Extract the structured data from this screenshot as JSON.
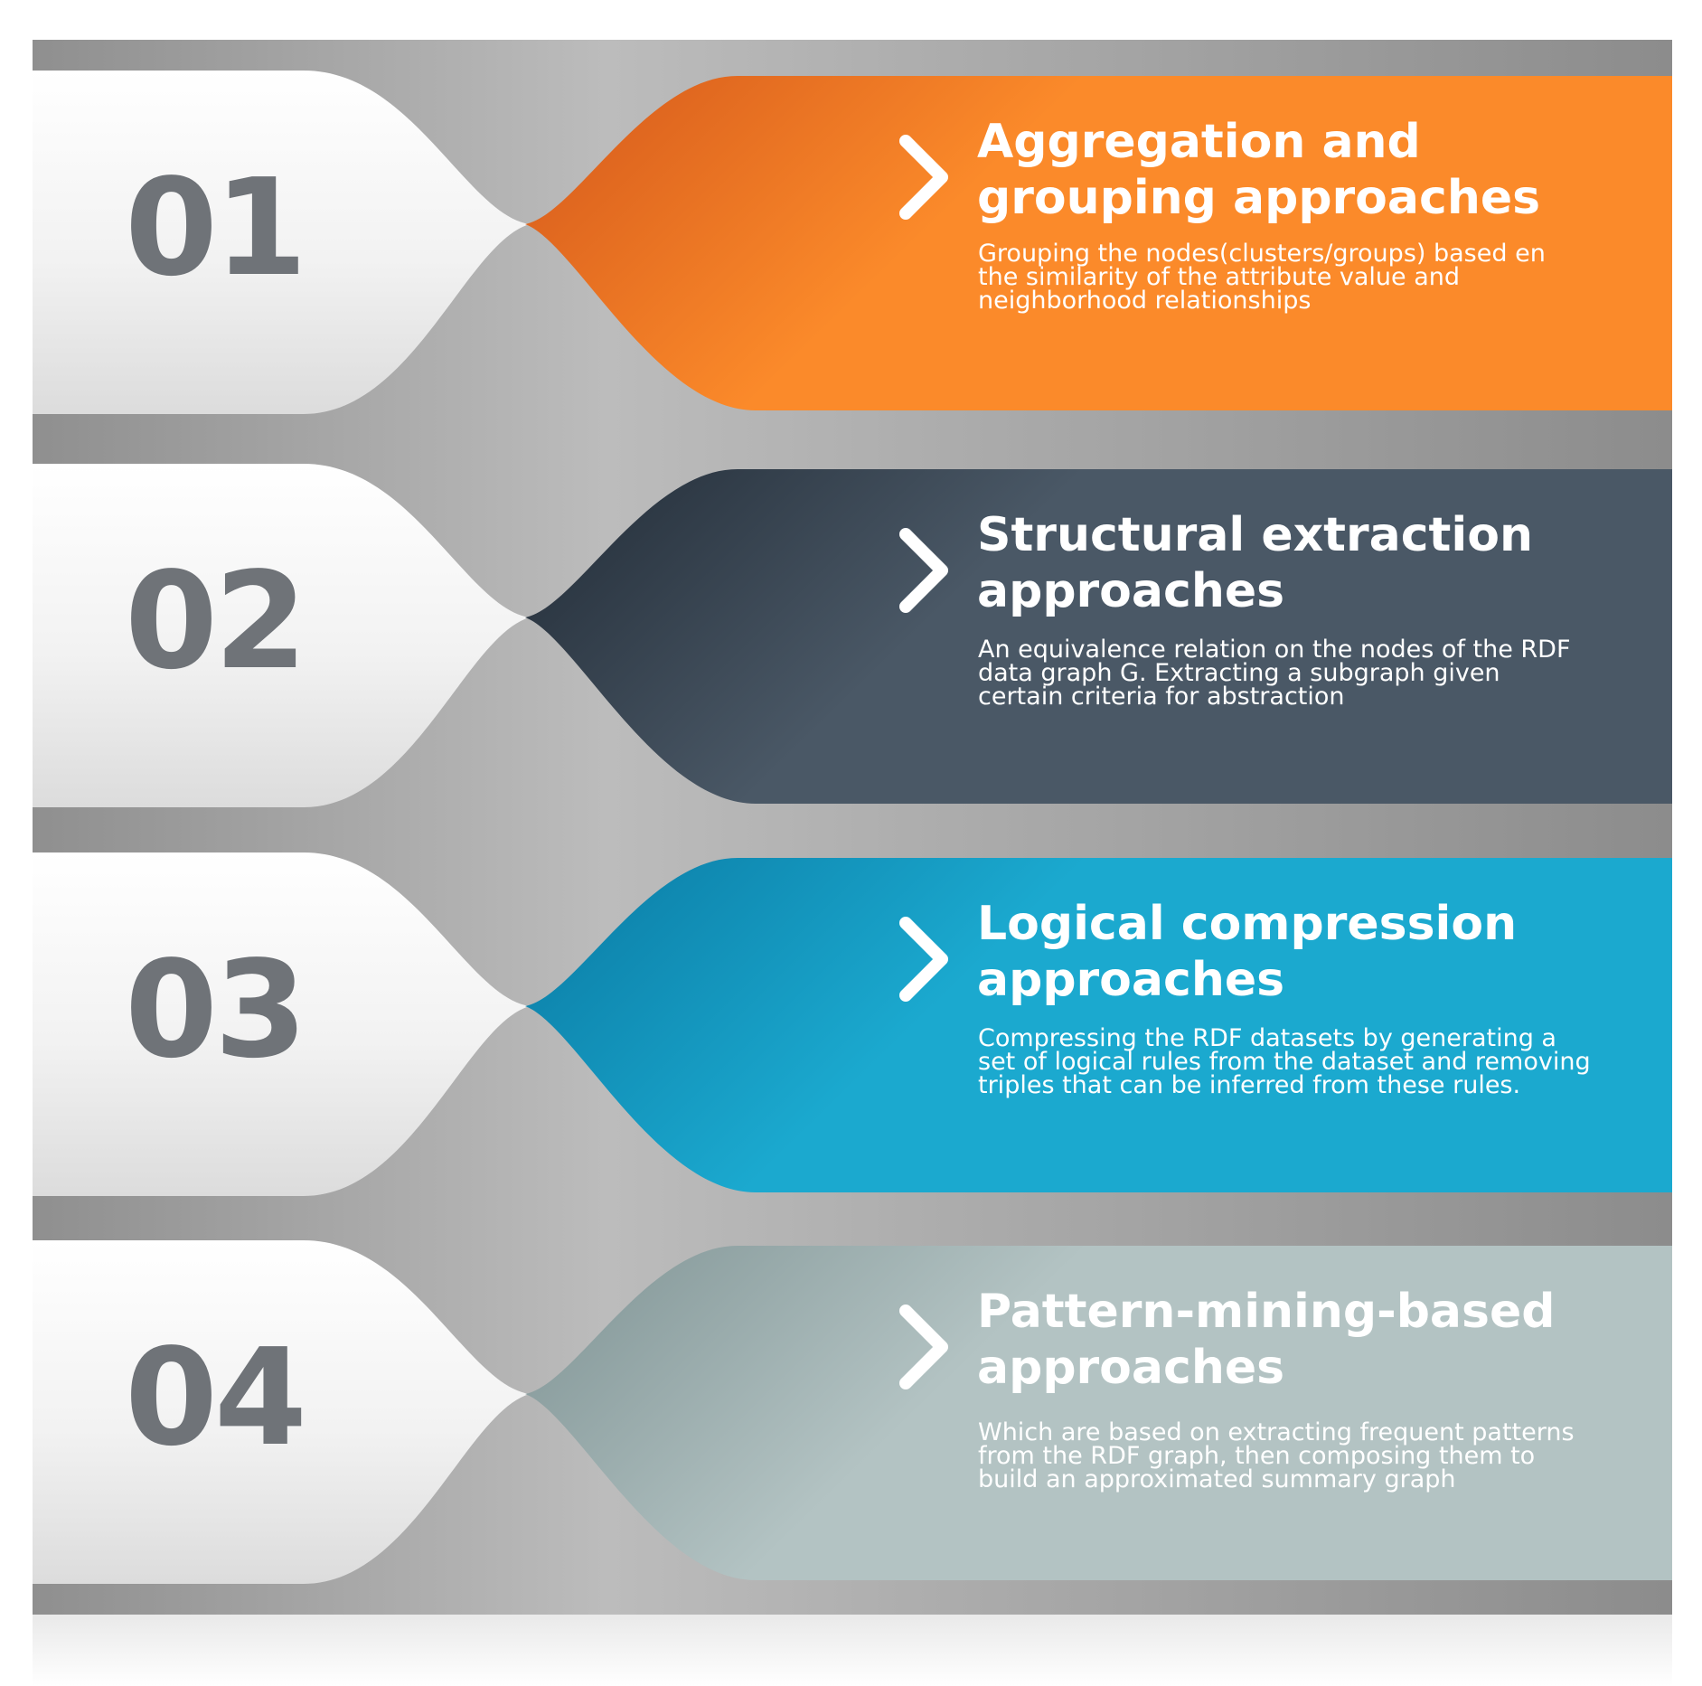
{
  "items": [
    {
      "number": "01",
      "title_line1": "Aggregation and",
      "title_line2": "grouping approaches",
      "description": "Grouping the nodes(clusters/groups) based en the similarity of the attribute value and neighborhood relationships",
      "color_light": "#fb8a2a",
      "color_dark": "#d4581b"
    },
    {
      "number": "02",
      "title_line1": "Structural extraction",
      "title_line2": "approaches",
      "description": "An equivalence relation on the nodes of the RDF data graph G. Extracting a subgraph given certain criteria for abstraction",
      "color_light": "#4a5866",
      "color_dark": "#222c37"
    },
    {
      "number": "03",
      "title_line1": "Logical compression",
      "title_line2": "approaches",
      "description": "Compressing the RDF datasets by generating a set of logical rules from the dataset and removing triples that can be inferred from these rules.",
      "color_light": "#1ba9cf",
      "color_dark": "#0a7aa3"
    },
    {
      "number": "04",
      "title_line1": "Pattern-mining-based",
      "title_line2": "approaches",
      "description": "Which are based on extracting frequent patterns from the RDF graph, then composing them to build an approximated summary graph",
      "color_light": "#b3c3c3",
      "color_dark": "#7f9394"
    }
  ]
}
